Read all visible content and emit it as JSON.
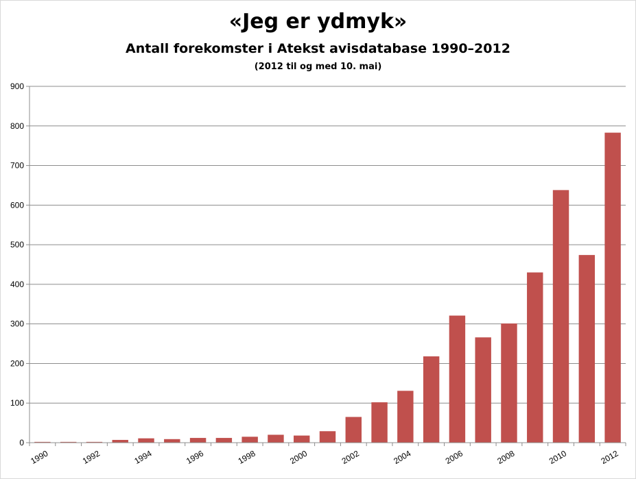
{
  "chart_data": {
    "type": "bar",
    "title": "«Jeg er ydmyk»",
    "subtitle": "Antall forekomster i Atekst avisdatabase 1990–2012",
    "note": "(2012 til og med 10. mai)",
    "xlabel": "",
    "ylabel": "",
    "ylim": [
      0,
      900
    ],
    "yticks": [
      0,
      100,
      200,
      300,
      400,
      500,
      600,
      700,
      800,
      900
    ],
    "grid": true,
    "bar_color": "#c0504d",
    "categories": [
      "1990",
      "1991",
      "1992",
      "1993",
      "1994",
      "1995",
      "1996",
      "1997",
      "1998",
      "1999",
      "2000",
      "2001",
      "2002",
      "2003",
      "2004",
      "2005",
      "2006",
      "2007",
      "2008",
      "2009",
      "2010",
      "2011",
      "2012"
    ],
    "xtick_labels": [
      "1990",
      "",
      "1992",
      "",
      "1994",
      "",
      "1996",
      "",
      "1998",
      "",
      "2000",
      "",
      "2002",
      "",
      "2004",
      "",
      "2006",
      "",
      "2008",
      "",
      "2010",
      "",
      "2012"
    ],
    "values": [
      2,
      2,
      2,
      7,
      11,
      9,
      12,
      12,
      15,
      20,
      18,
      29,
      65,
      102,
      131,
      218,
      321,
      266,
      301,
      430,
      638,
      474,
      783
    ]
  }
}
